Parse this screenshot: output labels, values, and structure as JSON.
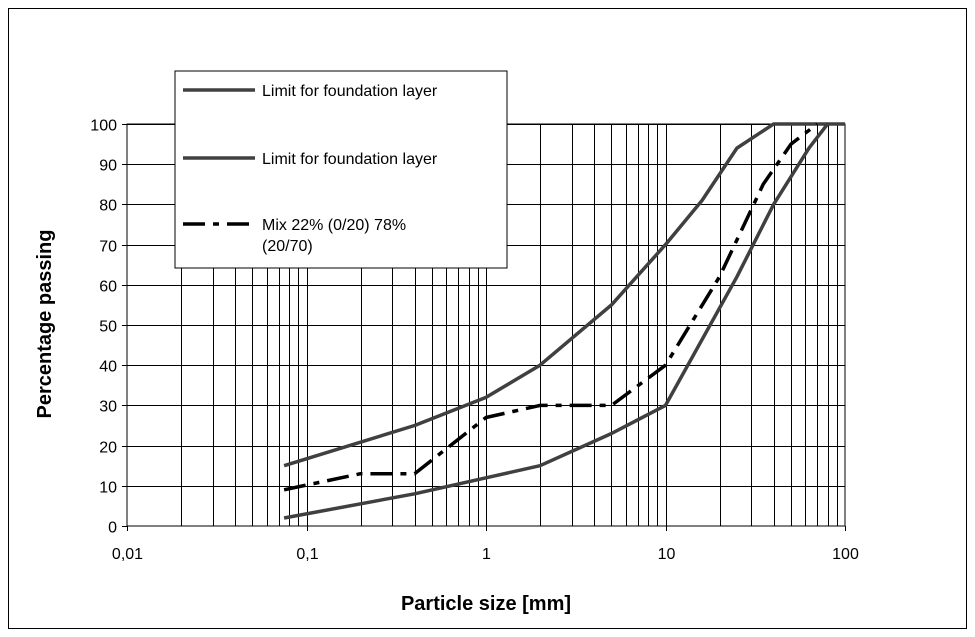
{
  "chart_data": {
    "type": "line",
    "title": "",
    "xlabel": "Particle size [mm]",
    "ylabel": "Percentage passing",
    "xscale": "log",
    "xlim": [
      0.01,
      100
    ],
    "ylim": [
      0,
      100
    ],
    "x_tick_labels": [
      "0,01",
      "0,1",
      "1",
      "10",
      "100"
    ],
    "x_tick_values": [
      0.01,
      0.1,
      1,
      10,
      100
    ],
    "y_tick_values": [
      0,
      10,
      20,
      30,
      40,
      50,
      60,
      70,
      80,
      90,
      100
    ],
    "grid": true,
    "legend_position": "top-left",
    "series": [
      {
        "name": "Limit for foundation layer",
        "style": "solid",
        "color": "#404040",
        "x": [
          0.075,
          0.4,
          1,
          2,
          5,
          10,
          16,
          25,
          40,
          80
        ],
        "y": [
          15,
          25,
          32,
          40,
          55,
          70,
          81,
          94,
          100,
          100
        ]
      },
      {
        "name": "Limit for foundation layer",
        "style": "solid",
        "color": "#404040",
        "x": [
          0.075,
          0.4,
          1,
          2,
          5,
          10,
          25,
          40,
          63,
          80,
          100
        ],
        "y": [
          2,
          8,
          12,
          15,
          23,
          30,
          62,
          80,
          94,
          100,
          100
        ]
      },
      {
        "name": "Mix 22% (0/20) 78% (20/70)",
        "style": "dash-dot",
        "color": "#000000",
        "x": [
          0.075,
          0.2,
          0.4,
          1,
          2,
          5,
          10,
          20,
          35,
          50,
          70
        ],
        "y": [
          9,
          13,
          13,
          27,
          30,
          30,
          40,
          62,
          85,
          95,
          100
        ]
      }
    ]
  }
}
